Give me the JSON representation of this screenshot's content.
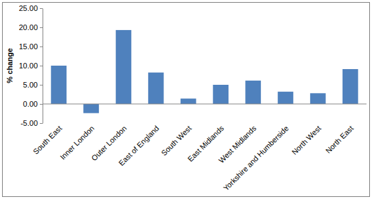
{
  "chart_data": {
    "type": "bar",
    "ylabel": "% change",
    "categories": [
      "South East",
      "Inner London",
      "Outer London",
      "East of England",
      "South West",
      "East Midlands",
      "West Midlands",
      "Yorkshire and Humberside",
      "North West",
      "North East"
    ],
    "values": [
      10.0,
      -2.4,
      19.3,
      8.2,
      1.4,
      5.0,
      6.1,
      3.2,
      2.8,
      9.1
    ],
    "color": "#4f81bd",
    "ylim": [
      -5,
      25
    ],
    "yticks": [
      {
        "value": -5,
        "label": "-5.00"
      },
      {
        "value": 0,
        "label": "0.00"
      },
      {
        "value": 5,
        "label": "5.00"
      },
      {
        "value": 10,
        "label": "10.00"
      },
      {
        "value": 15,
        "label": "15.00"
      },
      {
        "value": 20,
        "label": "20.00"
      },
      {
        "value": 25,
        "label": "25.00"
      }
    ],
    "grid": false
  }
}
